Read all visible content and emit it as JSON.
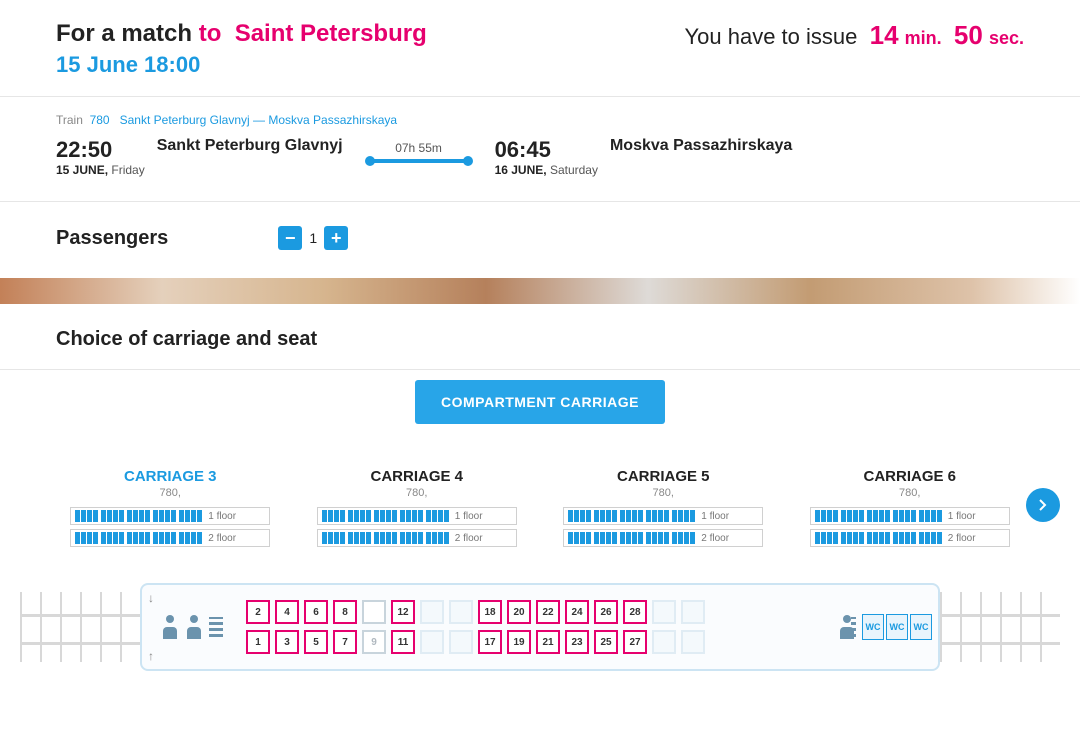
{
  "header": {
    "prefix": "For a match",
    "to": "to",
    "destination": "Saint Petersburg",
    "date_time": "15 June 18:00",
    "timer_prefix": "You have to issue",
    "minutes": "14",
    "min_unit": "min.",
    "seconds": "50",
    "sec_unit": "sec."
  },
  "breadcrumb": {
    "train_label": "Train",
    "train_num": "780",
    "route": "Sankt Peterburg Glavnyj — Moskva Passazhirskaya"
  },
  "journey": {
    "dep_time": "22:50",
    "dep_station": "Sankt Peterburg Glavnyj",
    "dep_date": "15 JUNE,",
    "dep_day": "Friday",
    "duration": "07h 55m",
    "arr_time": "06:45",
    "arr_station": "Moskva Passazhirskaya",
    "arr_date": "16 JUNE,",
    "arr_day": "Saturday"
  },
  "passengers": {
    "label": "Passengers",
    "count": "1"
  },
  "choice": {
    "title": "Choice of carriage and seat",
    "pill": "COMPARTMENT CARRIAGE"
  },
  "carriages": [
    {
      "title": "CARRIAGE 3",
      "sub": "780,",
      "active": true
    },
    {
      "title": "CARRIAGE 4",
      "sub": "780,",
      "active": false
    },
    {
      "title": "CARRIAGE 5",
      "sub": "780,",
      "active": false
    },
    {
      "title": "CARRIAGE 6",
      "sub": "780,",
      "active": false
    }
  ],
  "floors": {
    "f1": "1 floor",
    "f2": "2 floor"
  },
  "wc": "WC",
  "seats": [
    [
      {
        "n": "2",
        "s": "avail"
      },
      {
        "n": "4",
        "s": "avail"
      },
      {
        "n": "6",
        "s": "avail"
      },
      {
        "n": "8",
        "s": "avail"
      },
      {
        "n": "",
        "s": "na"
      },
      {
        "n": "12",
        "s": "avail"
      },
      {
        "n": "",
        "s": "blank"
      },
      {
        "n": "",
        "s": "blank"
      },
      {
        "n": "18",
        "s": "avail"
      },
      {
        "n": "20",
        "s": "avail"
      },
      {
        "n": "22",
        "s": "avail"
      },
      {
        "n": "24",
        "s": "avail"
      },
      {
        "n": "26",
        "s": "avail"
      },
      {
        "n": "28",
        "s": "avail"
      },
      {
        "n": "",
        "s": "blank"
      },
      {
        "n": "",
        "s": "blank"
      }
    ],
    [
      {
        "n": "1",
        "s": "avail"
      },
      {
        "n": "3",
        "s": "avail"
      },
      {
        "n": "5",
        "s": "avail"
      },
      {
        "n": "7",
        "s": "avail"
      },
      {
        "n": "9",
        "s": "na"
      },
      {
        "n": "11",
        "s": "avail"
      },
      {
        "n": "",
        "s": "blank"
      },
      {
        "n": "",
        "s": "blank"
      },
      {
        "n": "17",
        "s": "avail"
      },
      {
        "n": "19",
        "s": "avail"
      },
      {
        "n": "21",
        "s": "avail"
      },
      {
        "n": "23",
        "s": "avail"
      },
      {
        "n": "25",
        "s": "avail"
      },
      {
        "n": "27",
        "s": "avail"
      },
      {
        "n": "",
        "s": "blank"
      },
      {
        "n": "",
        "s": "blank"
      }
    ]
  ]
}
